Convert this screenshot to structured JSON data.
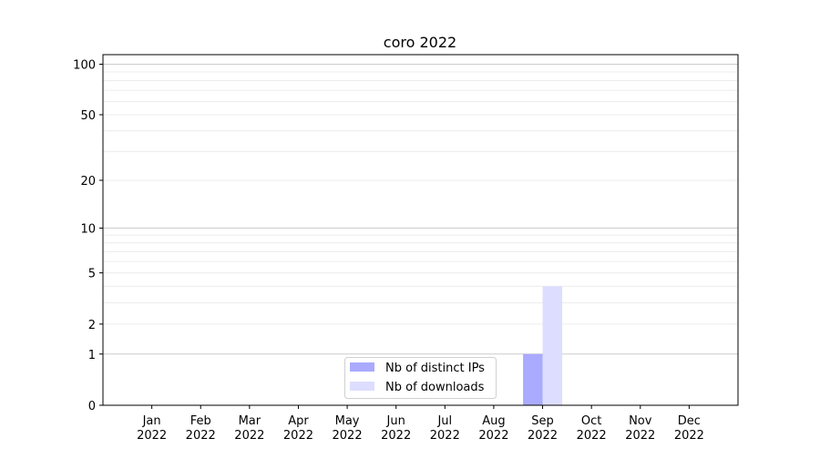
{
  "chart_data": {
    "type": "bar",
    "title": "coro 2022",
    "xlabel": "",
    "ylabel": "",
    "y_scale": "log(1+y)",
    "ylim": [
      0,
      114
    ],
    "grid": true,
    "legend_placement": "lower-center",
    "categories": [
      "Jan\n2022",
      "Feb\n2022",
      "Mar\n2022",
      "Apr\n2022",
      "May\n2022",
      "Jun\n2022",
      "Jul\n2022",
      "Aug\n2022",
      "Sep\n2022",
      "Oct\n2022",
      "Nov\n2022",
      "Dec\n2022"
    ],
    "y_ticks": [
      0,
      1,
      2,
      5,
      10,
      20,
      50,
      100
    ],
    "series": [
      {
        "name": "Nb of distinct IPs",
        "color": "#aaaaff",
        "values": [
          0,
          0,
          0,
          0,
          0,
          0,
          0,
          0,
          1,
          0,
          0,
          0
        ]
      },
      {
        "name": "Nb of downloads",
        "color": "#ddddff",
        "values": [
          0,
          0,
          0,
          0,
          0,
          0,
          0,
          0,
          4,
          0,
          0,
          0
        ]
      }
    ]
  }
}
